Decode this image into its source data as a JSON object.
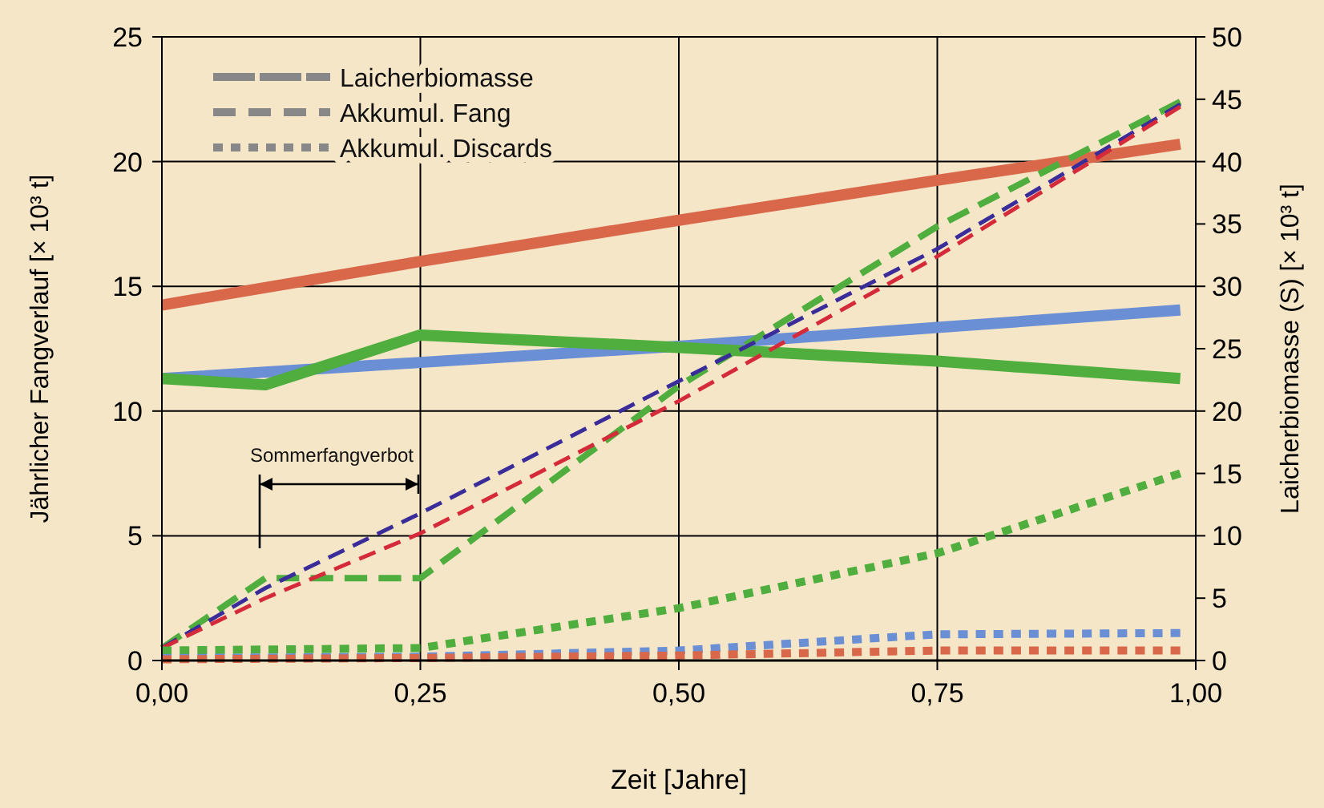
{
  "chart_data": {
    "type": "line",
    "xlabel": "Zeit [Jahre]",
    "ylabel": "Jährlicher Fangverlauf [× 10³ t]",
    "y2label": "Laicherbiomasse (S) [× 10³ t]",
    "xlim": [
      0,
      1
    ],
    "xticks": [
      {
        "value": 0,
        "label": "0,00"
      },
      {
        "value": 0.25,
        "label": "0,25"
      },
      {
        "value": 0.5,
        "label": "0,50"
      },
      {
        "value": 0.75,
        "label": "0,75"
      },
      {
        "value": 1,
        "label": "1,00"
      }
    ],
    "ylim": [
      0,
      25
    ],
    "yticks": [
      0,
      5,
      10,
      15,
      20,
      25
    ],
    "y2lim": [
      0,
      50
    ],
    "y2ticks": [
      0,
      5,
      10,
      15,
      20,
      25,
      30,
      35,
      40,
      45,
      50
    ],
    "grid": true,
    "series": [
      {
        "color": "#d9674a",
        "axis": "y2",
        "line_style": "solid",
        "x": [
          0,
          0.25,
          0.5,
          0.75,
          0.985
        ],
        "values": [
          28.5,
          32,
          35.3,
          38.5,
          41.4
        ]
      },
      {
        "color": "#6a8fd4",
        "axis": "y2",
        "line_style": "solid",
        "x": [
          0,
          0.25,
          0.5,
          0.75,
          0.985
        ],
        "values": [
          22.6,
          23.9,
          25.2,
          26.7,
          28.1
        ]
      },
      {
        "color": "#4fae3e",
        "axis": "y2",
        "line_style": "solid",
        "x": [
          0,
          0.1,
          0.25,
          0.5,
          0.75,
          0.985
        ],
        "values": [
          22.6,
          22.1,
          26.1,
          25.1,
          24,
          22.6
        ]
      },
      {
        "color": "#4fae3e",
        "line_style": "dashed",
        "x": [
          0,
          0.1,
          0.25,
          0.5,
          0.75,
          0.985
        ],
        "values": [
          0.5,
          3.3,
          3.3,
          11,
          17.4,
          22.4
        ]
      },
      {
        "color": "#3a2d9a",
        "line_style": "dashed",
        "x": [
          0,
          0.1,
          0.25,
          0.5,
          0.75,
          0.985
        ],
        "values": [
          0.5,
          2.9,
          5.9,
          11.2,
          16.5,
          22.3
        ]
      },
      {
        "color": "#d42a3a",
        "line_style": "dashed",
        "x": [
          0,
          0.1,
          0.25,
          0.5,
          0.75,
          0.985
        ],
        "values": [
          0.5,
          2.5,
          5.1,
          10.4,
          16.2,
          22.2
        ]
      },
      {
        "color": "#4fae3e",
        "line_style": "dotted",
        "x": [
          0,
          0.25,
          0.5,
          0.75,
          0.985
        ],
        "values": [
          0.4,
          0.5,
          2.1,
          4.3,
          7.5
        ]
      },
      {
        "color": "#6a8fd4",
        "line_style": "dotted",
        "x": [
          0,
          0.25,
          0.5,
          0.75,
          0.985
        ],
        "values": [
          0.1,
          0.15,
          0.4,
          1.05,
          1.1
        ]
      },
      {
        "color": "#d9674a",
        "line_style": "dotted",
        "x": [
          0,
          0.25,
          0.5,
          0.75,
          0.985
        ],
        "values": [
          0.05,
          0.1,
          0.2,
          0.4,
          0.4
        ]
      }
    ],
    "annotations": [
      "Laicherbiomasse",
      "Akkumul. Fang",
      "Akkumul. Discards",
      "Sommerfangverbot"
    ]
  }
}
